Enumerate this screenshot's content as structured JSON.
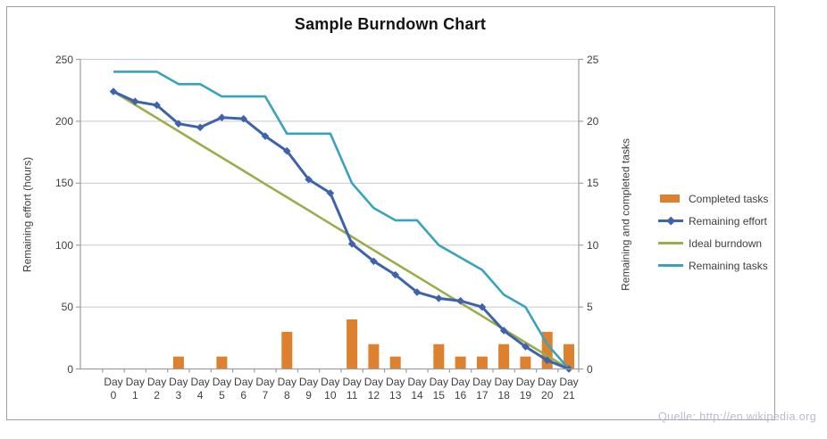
{
  "source_note": "Quelle: http://en.wikipedia.org",
  "colors": {
    "gridline": "#c9c9c9",
    "axis": "#9e9e9e",
    "tick_text": "#3f3f3f",
    "frame_border": "#9e9e9e",
    "watermark": "#b9bad3",
    "orange": "#dd812e",
    "blue": "#3e63ac",
    "green": "#99ad49",
    "teal": "#39a3be"
  },
  "chart_data": {
    "type": "combo-bar-line",
    "title": "Sample Burndown Chart",
    "categories": [
      "Day 0",
      "Day 1",
      "Day 2",
      "Day 3",
      "Day 4",
      "Day 5",
      "Day 6",
      "Day 7",
      "Day 8",
      "Day 9",
      "Day 10",
      "Day 11",
      "Day 12",
      "Day 13",
      "Day 14",
      "Day 15",
      "Day 16",
      "Day 17",
      "Day 18",
      "Day 19",
      "Day 20",
      "Day 21"
    ],
    "axes": {
      "left": {
        "label": "Remaining effort (hours)",
        "range": [
          0,
          250
        ],
        "ticks": [
          0,
          50,
          100,
          150,
          200,
          250
        ]
      },
      "right": {
        "label": "Remaining and completed tasks",
        "range": [
          0,
          25
        ],
        "ticks": [
          0,
          5,
          10,
          15,
          20,
          25
        ]
      }
    },
    "grid": true,
    "legend_position": "right",
    "series": [
      {
        "name": "Completed tasks",
        "type": "bar",
        "axis": "right",
        "color": "#dd812e",
        "values": [
          0,
          0,
          0,
          1,
          0,
          1,
          0,
          0,
          3,
          0,
          0,
          4,
          2,
          1,
          0,
          2,
          1,
          1,
          2,
          1,
          3,
          2
        ]
      },
      {
        "name": "Remaining effort",
        "type": "line-diamond",
        "axis": "left",
        "color": "#3e63ac",
        "values": [
          224,
          216,
          213,
          198,
          195,
          203,
          202,
          188,
          176,
          153,
          142,
          101,
          87,
          76,
          62,
          57,
          55,
          50,
          31,
          18,
          7,
          0
        ]
      },
      {
        "name": "Ideal burndown",
        "type": "line",
        "axis": "left",
        "color": "#99ad49",
        "values": [
          224,
          213.3,
          202.7,
          192,
          181.3,
          170.7,
          160,
          149.3,
          138.7,
          128,
          117.3,
          106.7,
          96,
          85.3,
          74.7,
          64,
          53.3,
          42.7,
          32,
          21.3,
          10.7,
          0
        ]
      },
      {
        "name": "Remaining tasks",
        "type": "line",
        "axis": "right",
        "color": "#39a3be",
        "values": [
          24,
          24,
          24,
          23,
          23,
          22,
          22,
          22,
          19,
          19,
          19,
          15,
          13,
          12,
          12,
          10,
          9,
          8,
          6,
          5,
          2,
          0
        ]
      }
    ]
  }
}
